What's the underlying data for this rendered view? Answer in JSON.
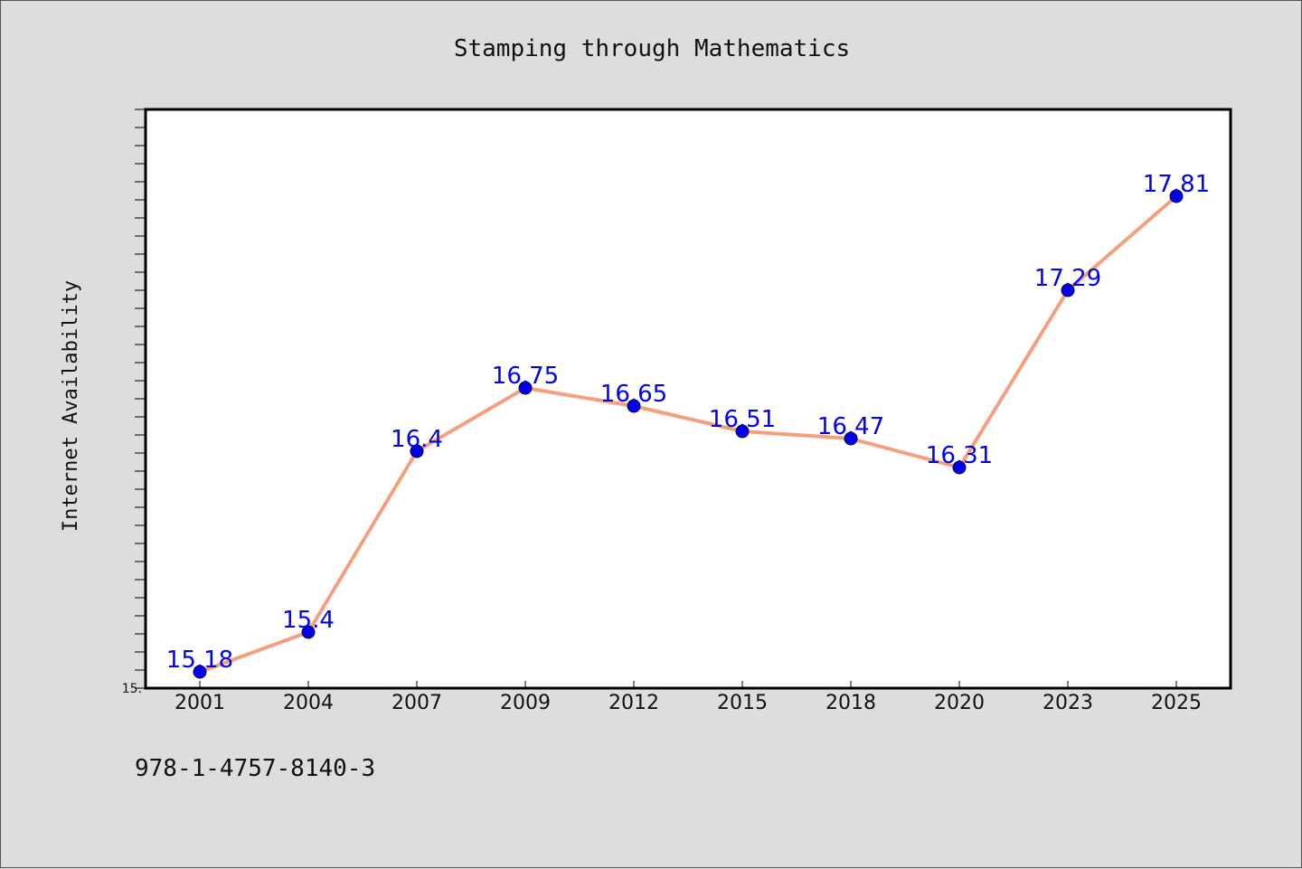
{
  "colors": {
    "background": "#dddddd",
    "plot_background": "#ffffff",
    "line": "#f4a07e",
    "marker": "#0000ee",
    "label": "#0000ee",
    "axis": "#000000"
  },
  "footer": {
    "isbn": "978-1-4757-8140-3"
  },
  "chart_data": {
    "type": "line",
    "title": "Stamping through Mathematics",
    "xlabel": "",
    "ylabel": "Internet Availability",
    "categories": [
      "2001",
      "2004",
      "2007",
      "2009",
      "2012",
      "2015",
      "2018",
      "2020",
      "2023",
      "2025"
    ],
    "series": [
      {
        "values": [
          15.18,
          15.4,
          16.4,
          16.75,
          16.65,
          16.51,
          16.47,
          16.31,
          17.29,
          17.81
        ]
      }
    ],
    "data_labels": [
      "15.18",
      "15.4",
      "16.4",
      "16.75",
      "16.65",
      "16.51",
      "16.47",
      "16.31",
      "17.29",
      "17.81"
    ],
    "ylim": [
      15.09,
      18.29
    ],
    "y_tick_labels": [
      {
        "value": 15.09,
        "label": "15."
      }
    ],
    "y_minor_step": 0.1,
    "grid": false,
    "legend": "none",
    "marker": "circle"
  }
}
